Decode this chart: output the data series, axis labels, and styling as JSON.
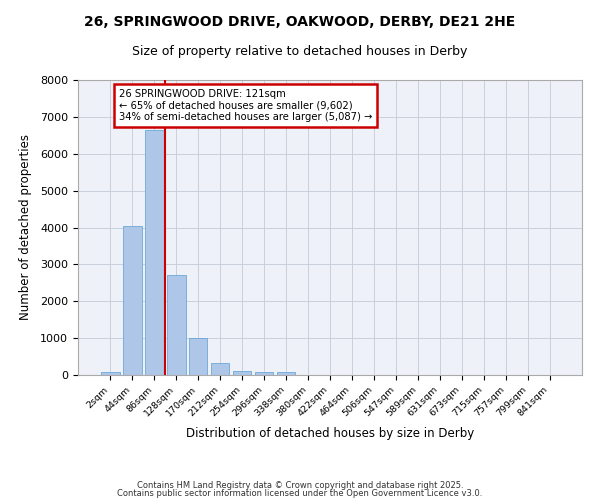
{
  "title_line1": "26, SPRINGWOOD DRIVE, OAKWOOD, DERBY, DE21 2HE",
  "title_line2": "Size of property relative to detached houses in Derby",
  "xlabel": "Distribution of detached houses by size in Derby",
  "ylabel": "Number of detached properties",
  "categories": [
    "2sqm",
    "44sqm",
    "86sqm",
    "128sqm",
    "170sqm",
    "212sqm",
    "254sqm",
    "296sqm",
    "338sqm",
    "380sqm",
    "422sqm",
    "464sqm",
    "506sqm",
    "547sqm",
    "589sqm",
    "631sqm",
    "673sqm",
    "715sqm",
    "757sqm",
    "799sqm",
    "841sqm"
  ],
  "values": [
    75,
    4050,
    6650,
    2700,
    1000,
    325,
    120,
    75,
    75,
    0,
    0,
    0,
    0,
    0,
    0,
    0,
    0,
    0,
    0,
    0,
    0
  ],
  "bar_color": "#aec6e8",
  "bar_edge_color": "#5a9fd4",
  "ylim": [
    0,
    8000
  ],
  "yticks": [
    0,
    1000,
    2000,
    3000,
    4000,
    5000,
    6000,
    7000,
    8000
  ],
  "annotation_text": "26 SPRINGWOOD DRIVE: 121sqm\n← 65% of detached houses are smaller (9,602)\n34% of semi-detached houses are larger (5,087) →",
  "annotation_box_color": "#ffffff",
  "annotation_box_edge": "#cc0000",
  "footer_line1": "Contains HM Land Registry data © Crown copyright and database right 2025.",
  "footer_line2": "Contains public sector information licensed under the Open Government Licence v3.0.",
  "background_color": "#eef2f8",
  "grid_color": "#c8d0dc",
  "red_line_color": "#cc0000"
}
